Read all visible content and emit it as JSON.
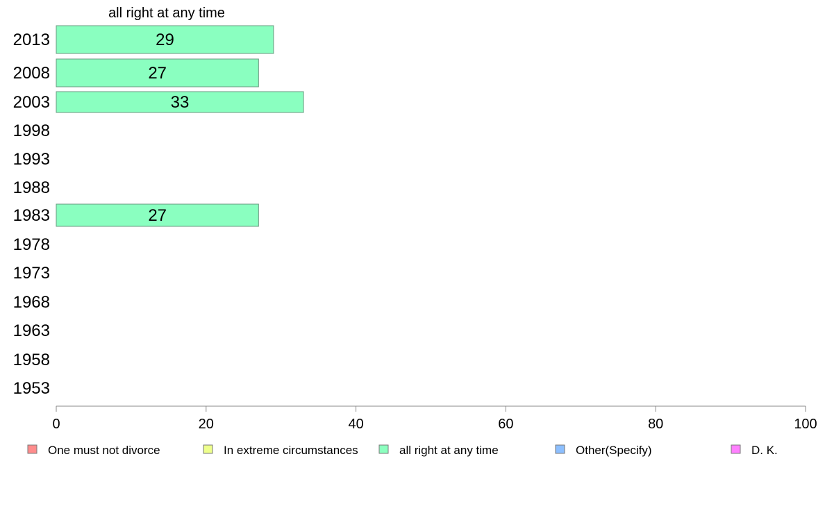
{
  "chart_data": {
    "type": "bar",
    "orientation": "horizontal",
    "series_title": "all right at any time",
    "categories": [
      "2013",
      "2008",
      "2003",
      "1998",
      "1993",
      "1988",
      "1983",
      "1978",
      "1973",
      "1968",
      "1963",
      "1958",
      "1953"
    ],
    "series": [
      {
        "name": "all right at any time",
        "values": [
          29,
          27,
          33,
          null,
          null,
          null,
          27,
          null,
          null,
          null,
          null,
          null,
          null
        ]
      }
    ],
    "xlim": [
      0,
      100
    ],
    "xticks": [
      0,
      20,
      40,
      60,
      80,
      100
    ],
    "grid": false,
    "legend_position": "bottom",
    "legend": [
      {
        "label": "One must not divorce",
        "color": "#ff8c8c"
      },
      {
        "label": "In extreme circumstances",
        "color": "#eeff8c"
      },
      {
        "label": "all right at any time",
        "color": "#8cffbf"
      },
      {
        "label": "Other(Specify)",
        "color": "#8cbfff"
      },
      {
        "label": "D. K.",
        "color": "#ff80ff"
      }
    ],
    "bar_color": "#8affc0"
  }
}
